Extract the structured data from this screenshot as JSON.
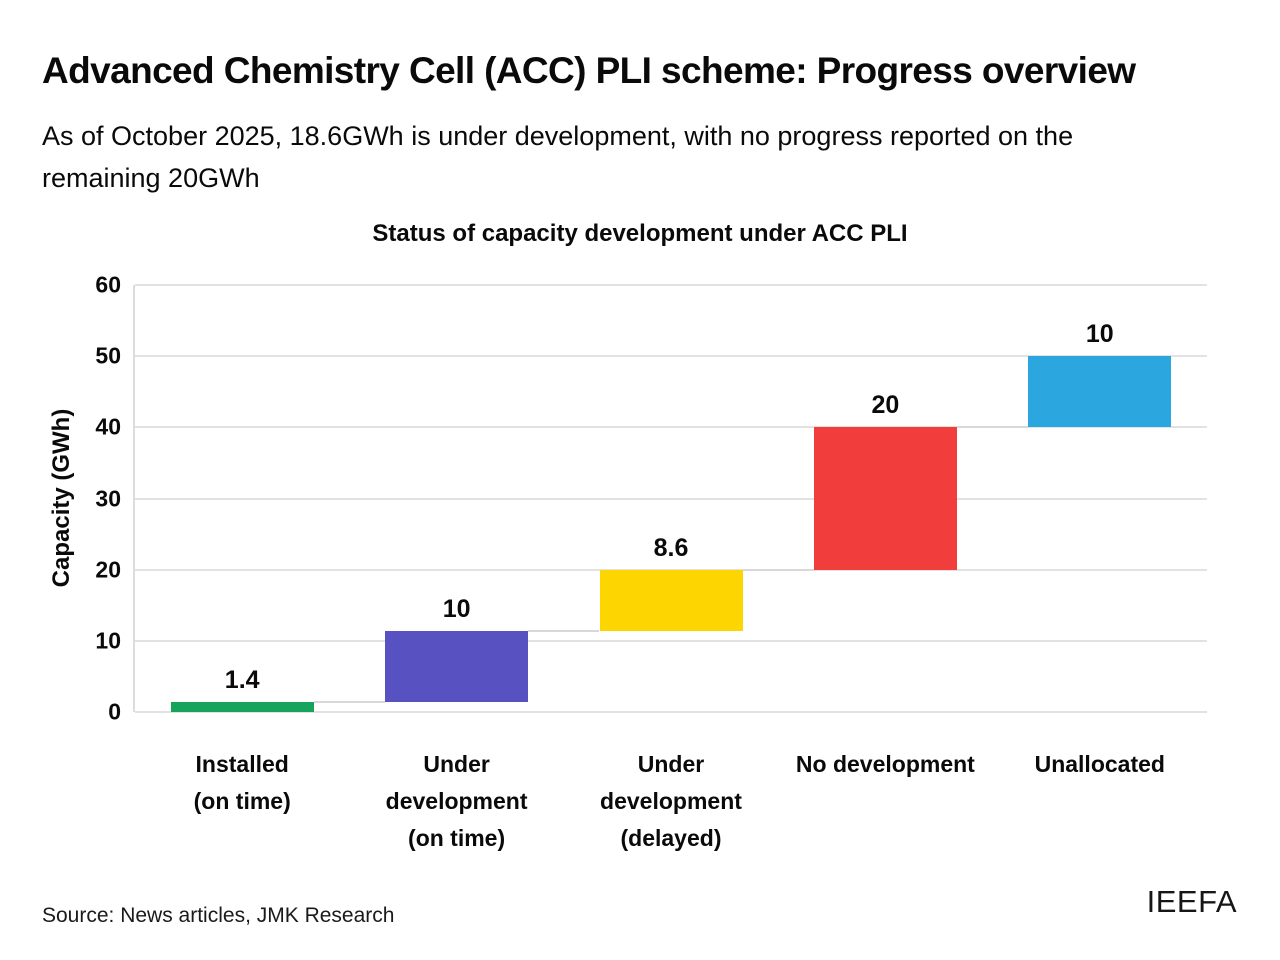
{
  "page": {
    "title": "Advanced Chemistry Cell (ACC) PLI scheme: Progress overview",
    "subtitle": "As of October 2025, 18.6GWh is under development, with no progress reported on the remaining 20GWh",
    "source": "Source: News articles, JMK Research",
    "logo": "IEEFA"
  },
  "chart_data": {
    "type": "bar",
    "subtype": "waterfall",
    "title": "Status of capacity development under ACC PLI",
    "xlabel": "",
    "ylabel": "Capacity (GWh)",
    "ylim": [
      0,
      60
    ],
    "yticks": [
      0,
      10,
      20,
      30,
      40,
      50,
      60
    ],
    "grid": true,
    "legend": "none",
    "categories": [
      "Installed\n(on time)",
      "Under development\n(on time)",
      "Under development\n(delayed)",
      "No development",
      "Unallocated"
    ],
    "values": [
      1.4,
      10,
      8.6,
      20,
      10
    ],
    "bars": [
      {
        "category": "Installed (on time)",
        "value": 1.4,
        "start": 0,
        "end": 1.4,
        "color": "#16a35c",
        "data_label": "1.4"
      },
      {
        "category": "Under development (on time)",
        "value": 10,
        "start": 1.4,
        "end": 11.4,
        "color": "#5751c1",
        "data_label": "10"
      },
      {
        "category": "Under development (delayed)",
        "value": 8.6,
        "start": 11.4,
        "end": 20,
        "color": "#fdd501",
        "data_label": "8.6"
      },
      {
        "category": "No development",
        "value": 20,
        "start": 20,
        "end": 40,
        "color": "#f13d3c",
        "data_label": "20"
      },
      {
        "category": "Unallocated",
        "value": 10,
        "start": 40,
        "end": 50,
        "color": "#2ca6de",
        "data_label": "10"
      }
    ],
    "gridline_color": "#e2e2e2",
    "connector_color": "#d8d8d8"
  }
}
